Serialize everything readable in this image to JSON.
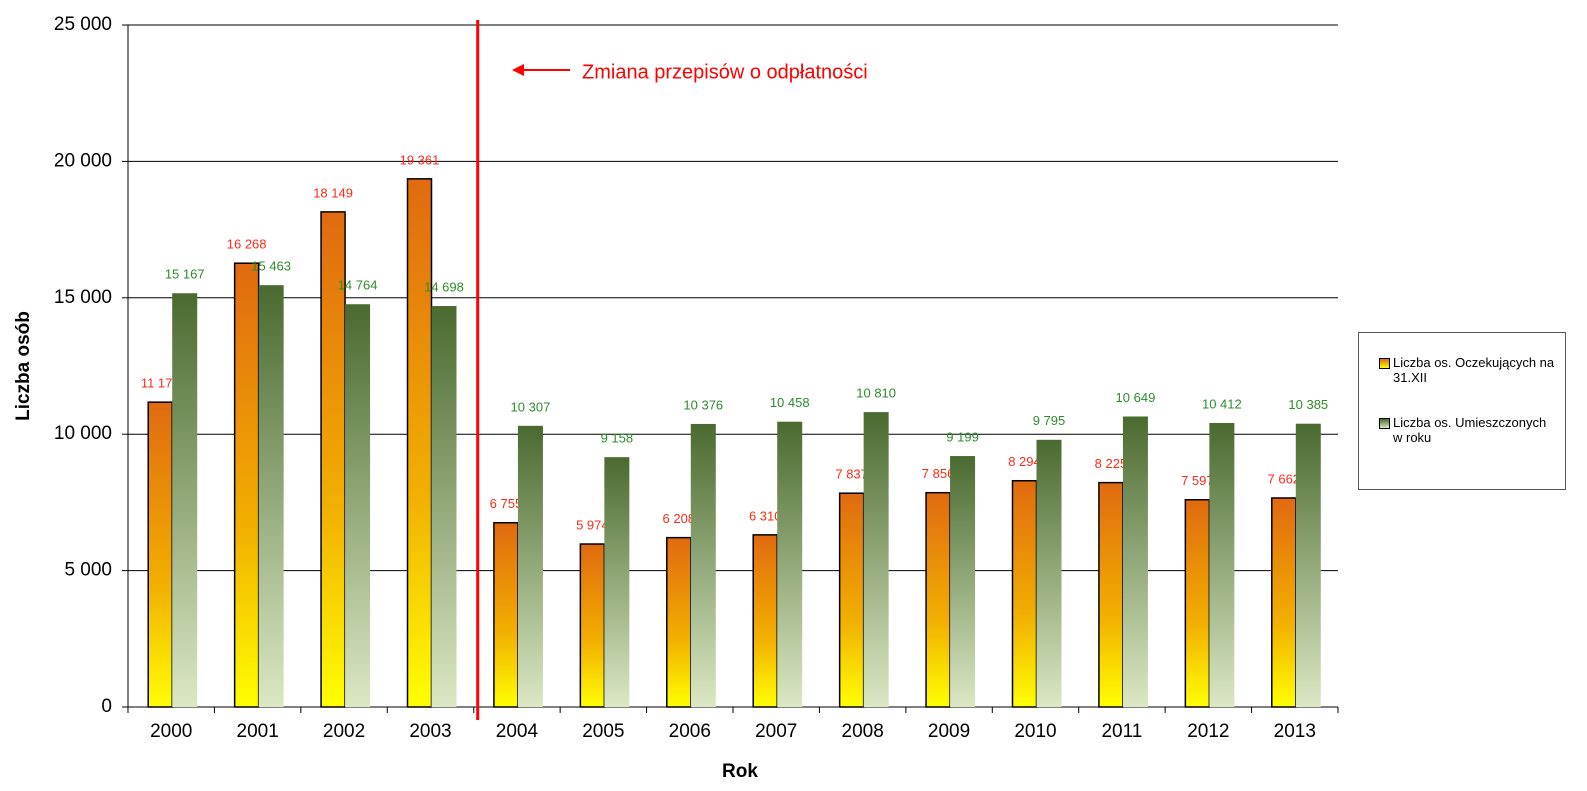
{
  "chart_data": {
    "type": "bar",
    "x_label": "Rok",
    "y_label": "Liczba osób",
    "annotation": "Zmiana przepisów o odpłatności",
    "categories": [
      "2000",
      "2001",
      "2002",
      "2003",
      "2004",
      "2005",
      "2006",
      "2007",
      "2008",
      "2009",
      "2010",
      "2011",
      "2012",
      "2013"
    ],
    "series": [
      {
        "name": "Liczba os. Oczekujących na 31.XII",
        "color": "#e06a10",
        "label_color": "#ff2a1a",
        "values": [
          11175,
          16268,
          18149,
          19361,
          6755,
          5974,
          6208,
          6310,
          7837,
          7856,
          8294,
          8225,
          7597,
          7662
        ],
        "value_labels": [
          "11 175",
          "16 268",
          "18 149",
          "19 361",
          "6 755",
          "5 974",
          "6 208",
          "6 310",
          "7 837",
          "7 856",
          "8 294",
          "8 225",
          "7 597",
          "7 662"
        ]
      },
      {
        "name": "Liczba os. Umieszczonych w roku",
        "color": "#4a6a30",
        "label_color": "#2e8b2e",
        "values": [
          15167,
          15463,
          14764,
          14698,
          10307,
          9158,
          10376,
          10458,
          10810,
          9199,
          9795,
          10649,
          10412,
          10385
        ],
        "value_labels": [
          "15 167",
          "15 463",
          "14 764",
          "14 698",
          "10 307",
          "9 158",
          "10 376",
          "10 458",
          "10 810",
          "9 199",
          "9 795",
          "10 649",
          "10 412",
          "10 385"
        ]
      }
    ],
    "ylim": [
      0,
      25000
    ],
    "yticks": [
      0,
      {
        "value": 5000,
        "label": "5 000"
      },
      {
        "value": 10000,
        "label": "10 000"
      },
      {
        "value": 15000,
        "label": "15 000"
      },
      {
        "value": 20000,
        "label": "20 000"
      },
      {
        "value": 25000,
        "label": "25 000"
      }
    ],
    "grid": true
  }
}
